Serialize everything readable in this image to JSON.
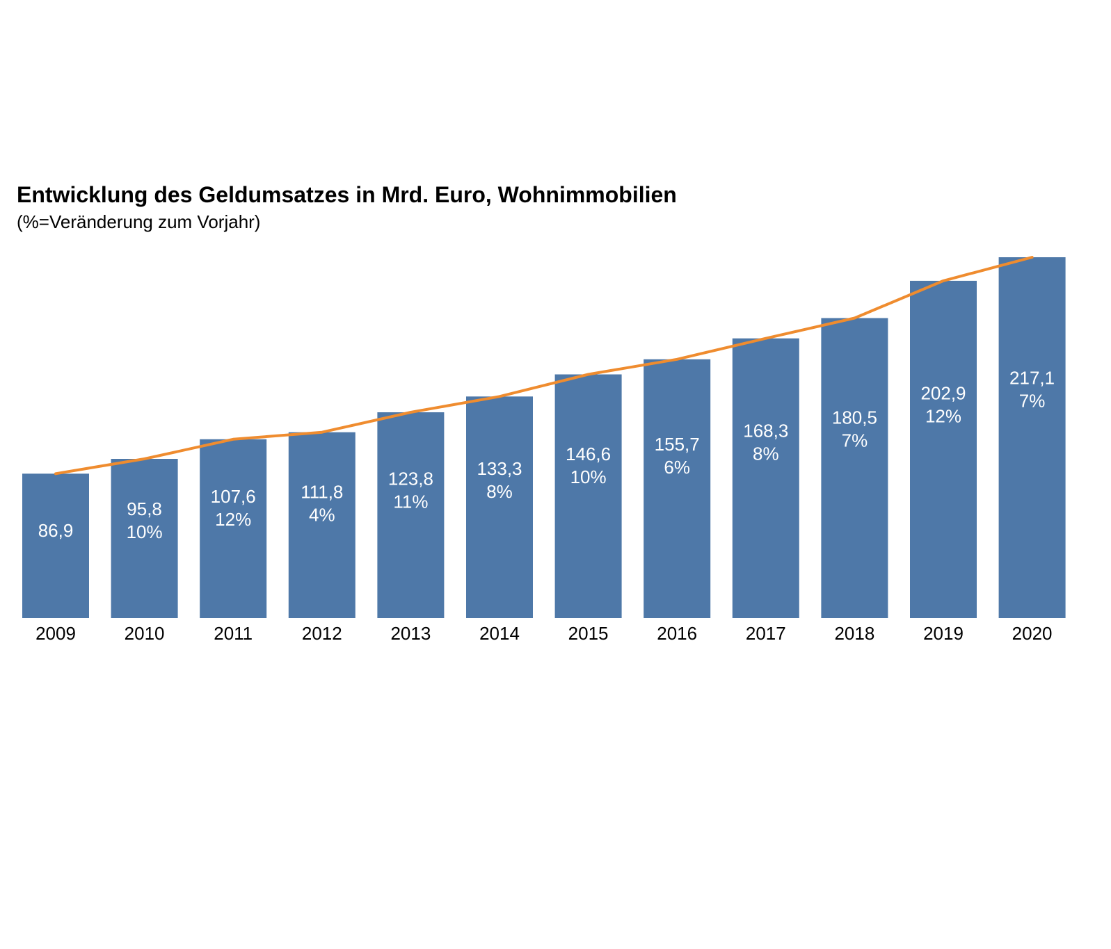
{
  "chart_data": {
    "type": "bar",
    "title": "Entwicklung des Geldumsatzes in Mrd. Euro, Wohnimmobilien",
    "subtitle": "(%=Veränderung zum Vorjahr)",
    "xlabel": "",
    "ylabel": "",
    "categories": [
      "2009",
      "2010",
      "2011",
      "2012",
      "2013",
      "2014",
      "2015",
      "2016",
      "2017",
      "2018",
      "2019",
      "2020"
    ],
    "values": [
      86.9,
      95.8,
      107.6,
      111.8,
      123.8,
      133.3,
      146.6,
      155.7,
      168.3,
      180.5,
      202.9,
      217.1
    ],
    "value_labels": [
      "86,9",
      "95,8",
      "107,6",
      "111,8",
      "123,8",
      "133,3",
      "146,6",
      "155,7",
      "168,3",
      "180,5",
      "202,9",
      "217,1"
    ],
    "change_labels": [
      "",
      "10%",
      "12%",
      "4%",
      "11%",
      "8%",
      "10%",
      "6%",
      "8%",
      "7%",
      "12%",
      "7%"
    ],
    "ylim": [
      0,
      217.1
    ],
    "grid": false,
    "legend": "none",
    "series": [
      {
        "name": "Geldumsatz",
        "type": "bar",
        "color": "#4e78a8"
      },
      {
        "name": "Trend",
        "type": "line",
        "color": "#ef8c2f"
      }
    ]
  }
}
